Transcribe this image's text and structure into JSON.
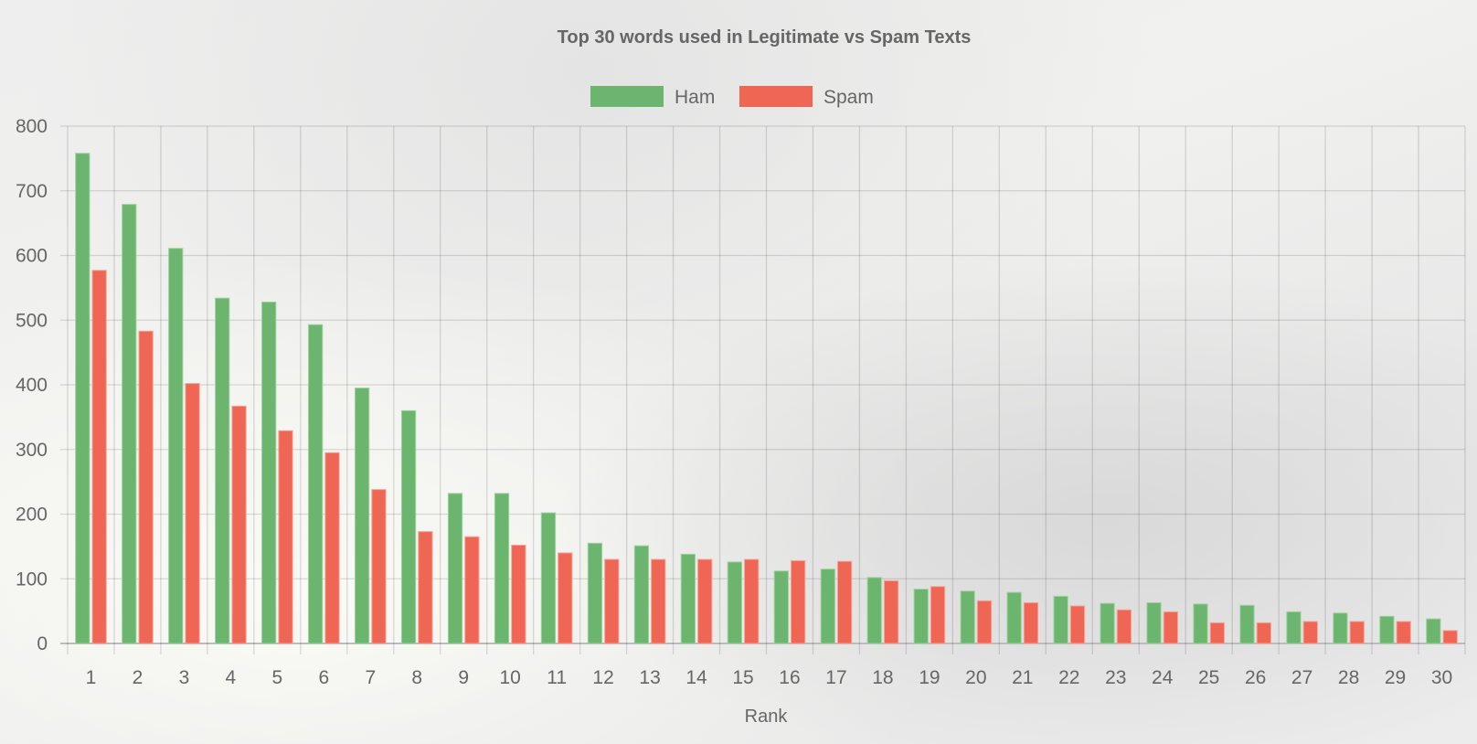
{
  "chart_data": {
    "type": "bar",
    "title": "Top 30 words used in Legitimate vs Spam Texts",
    "xlabel": "Rank",
    "ylabel": "",
    "ylim": [
      0,
      800
    ],
    "yticks": [
      "0",
      "100",
      "200",
      "300",
      "400",
      "500",
      "600",
      "700",
      "800"
    ],
    "grid": true,
    "legend_position": "top",
    "categories": [
      "1",
      "2",
      "3",
      "4",
      "5",
      "6",
      "7",
      "8",
      "9",
      "10",
      "11",
      "12",
      "13",
      "14",
      "15",
      "16",
      "17",
      "18",
      "19",
      "20",
      "21",
      "22",
      "23",
      "24",
      "25",
      "26",
      "27",
      "28",
      "29",
      "30"
    ],
    "series": [
      {
        "name": "Ham",
        "color": "#6bb56e",
        "values": [
          758,
          679,
          611,
          534,
          528,
          493,
          395,
          360,
          232,
          232,
          202,
          155,
          151,
          138,
          126,
          112,
          115,
          102,
          84,
          81,
          79,
          73,
          62,
          63,
          61,
          59,
          49,
          47,
          42,
          38
        ]
      },
      {
        "name": "Spam",
        "color": "#ef6654",
        "values": [
          577,
          483,
          402,
          367,
          329,
          295,
          238,
          173,
          165,
          152,
          140,
          130,
          130,
          130,
          130,
          128,
          127,
          97,
          88,
          66,
          63,
          58,
          52,
          49,
          32,
          32,
          34,
          34,
          34,
          20
        ]
      }
    ]
  }
}
